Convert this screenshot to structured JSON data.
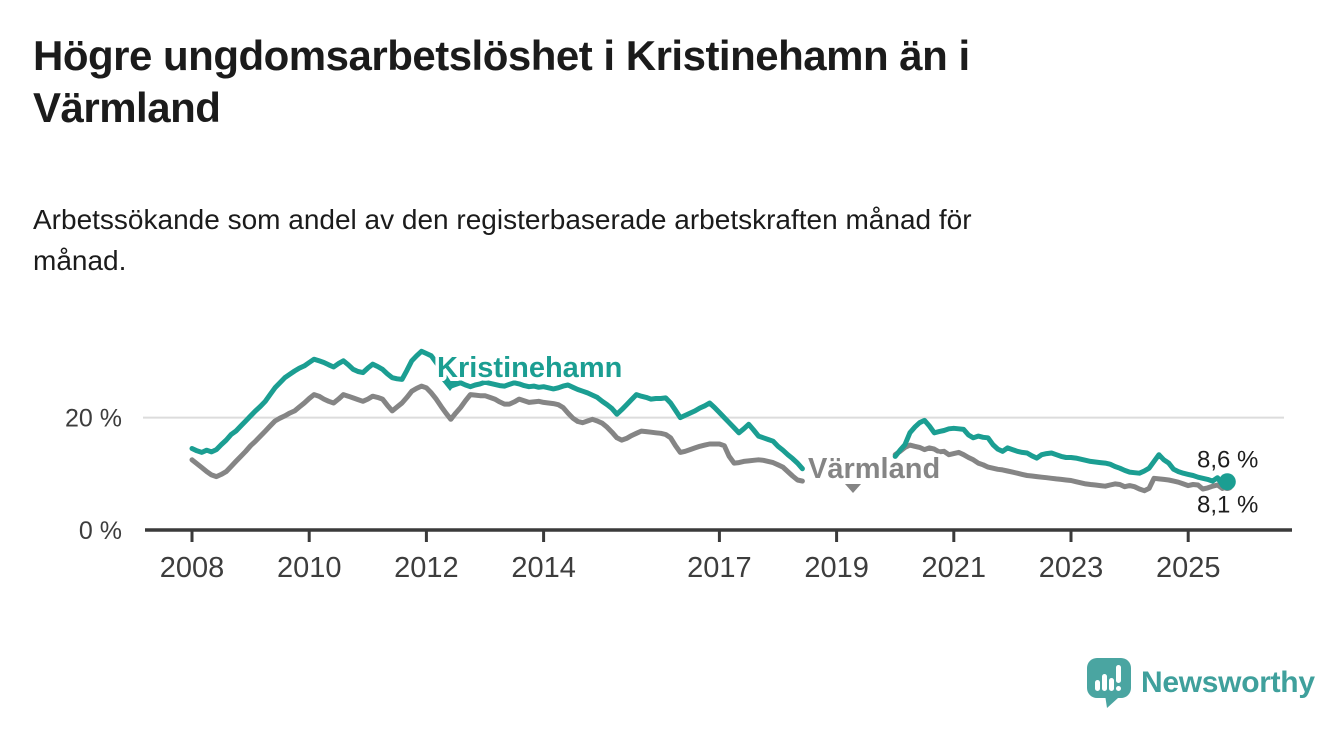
{
  "header": {
    "title": "Högre ungdomsarbetslöshet i Kristinehamn än i Värmland",
    "title_lines": [
      "Högre ungdomsarbetslöshet i Kristinehamn än i",
      "Värmland"
    ],
    "subtitle": "Arbetssökande som andel av den registerbaserade arbetskraften månad för månad.",
    "subtitle_lines": [
      "Arbetssökande som andel av den registerbaserade arbetskraften månad för",
      "månad."
    ]
  },
  "branding": {
    "logo_text": "Newsworthy",
    "logo_color": "#4aa5a1",
    "logo_icon": "bar-chart-speech-bubble-icon"
  },
  "chart_data": {
    "type": "line",
    "title": "Högre ungdomsarbetslöshet i Kristinehamn än i Värmland",
    "subtitle": "Arbetssökande som andel av den registerbaserade arbetskraften månad för månad.",
    "unit": "%",
    "x_start": "2008-01",
    "x_step_months": 1,
    "x_end": "2025-09",
    "data_gap": {
      "from": "2018-07",
      "to": "2019-12"
    },
    "grid": "horizontal-only",
    "legend_position": "inline-labels",
    "x_axis": {
      "ticks": [
        2008,
        2010,
        2012,
        2014,
        2017,
        2019,
        2021,
        2023,
        2025
      ]
    },
    "y_axis": {
      "range": [
        0,
        33.5
      ],
      "gridlines": [
        20
      ],
      "ticks": [
        {
          "value": 20,
          "label": "20 %"
        },
        {
          "value": 0,
          "label": "0 %"
        }
      ]
    },
    "colors": {
      "axis": "#3a3a3a",
      "grid": "#dcdcdc",
      "tick_label": "#3d3d3d",
      "annotation": "#1d1d1d"
    },
    "series": [
      {
        "name": "Kristinehamn",
        "color": "#1b9e92",
        "end_label": "8,6 %",
        "latest_value": 8.6,
        "values": [
          14.5,
          14.1,
          13.8,
          14.2,
          13.9,
          14.3,
          15.2,
          16.0,
          17.0,
          17.6,
          18.5,
          19.4,
          20.3,
          21.2,
          22.0,
          22.9,
          24.1,
          25.3,
          26.2,
          27.1,
          27.7,
          28.3,
          28.8,
          29.2,
          29.8,
          30.4,
          30.1,
          29.8,
          29.4,
          29.0,
          29.6,
          30.1,
          29.4,
          28.6,
          28.2,
          28.0,
          28.8,
          29.5,
          29.1,
          28.6,
          27.8,
          27.1,
          26.9,
          26.8,
          28.4,
          30.1,
          31.0,
          31.8,
          31.4,
          31.0,
          29.8,
          28.6,
          27.0,
          25.6,
          25.9,
          26.2,
          25.8,
          25.5,
          25.8,
          26.0,
          26.3,
          26.1,
          25.9,
          25.7,
          25.6,
          25.9,
          26.2,
          26.0,
          25.7,
          25.5,
          25.6,
          25.4,
          25.5,
          25.3,
          25.1,
          25.3,
          25.6,
          25.8,
          25.4,
          25.0,
          24.7,
          24.4,
          24.0,
          23.6,
          22.9,
          22.3,
          21.6,
          20.6,
          21.4,
          22.3,
          23.2,
          24.1,
          23.8,
          23.6,
          23.3,
          23.4,
          23.4,
          23.5,
          22.6,
          21.3,
          20.0,
          20.4,
          20.8,
          21.2,
          21.7,
          22.1,
          22.6,
          21.8,
          20.9,
          20.0,
          19.1,
          18.2,
          17.3,
          18.0,
          18.8,
          17.8,
          16.7,
          16.4,
          16.1,
          15.8,
          14.9,
          14.2,
          13.4,
          12.7,
          11.9,
          10.9,
          null,
          null,
          null,
          null,
          null,
          null,
          null,
          null,
          null,
          null,
          null,
          null,
          null,
          null,
          null,
          null,
          null,
          null,
          13.1,
          14.2,
          15.2,
          17.3,
          18.3,
          19.1,
          19.5,
          18.5,
          17.3,
          17.5,
          17.7,
          18.0,
          18.1,
          18.0,
          17.9,
          16.9,
          16.4,
          16.7,
          16.5,
          16.4,
          15.2,
          14.4,
          14.0,
          14.6,
          14.3,
          14.0,
          13.8,
          13.7,
          13.2,
          12.8,
          13.4,
          13.6,
          13.7,
          13.4,
          13.1,
          12.9,
          12.9,
          12.8,
          12.6,
          12.4,
          12.2,
          12.1,
          12.0,
          11.9,
          11.7,
          11.3,
          11.0,
          10.6,
          10.3,
          10.2,
          10.1,
          10.5,
          11.0,
          12.2,
          13.4,
          12.5,
          11.9,
          10.8,
          10.4,
          10.1,
          9.9,
          9.7,
          9.4,
          9.2,
          9.0,
          8.7,
          9.3,
          8.0,
          8.6
        ]
      },
      {
        "name": "Värmland",
        "color": "#858585",
        "end_label": "8,1 %",
        "latest_value": 8.1,
        "values": [
          12.5,
          11.8,
          11.1,
          10.4,
          9.8,
          9.5,
          9.9,
          10.4,
          11.3,
          12.2,
          13.1,
          14.0,
          15.0,
          15.8,
          16.7,
          17.6,
          18.5,
          19.4,
          19.9,
          20.3,
          20.8,
          21.2,
          21.9,
          22.6,
          23.4,
          24.1,
          23.8,
          23.3,
          22.9,
          22.6,
          23.3,
          24.1,
          23.8,
          23.5,
          23.2,
          22.9,
          23.3,
          23.8,
          23.6,
          23.3,
          22.2,
          21.2,
          21.9,
          22.6,
          23.6,
          24.7,
          25.2,
          25.6,
          25.3,
          24.4,
          23.3,
          22.0,
          20.8,
          19.7,
          20.8,
          21.8,
          23.0,
          24.1,
          24.0,
          23.9,
          23.9,
          23.6,
          23.3,
          22.8,
          22.4,
          22.4,
          22.8,
          23.3,
          23.0,
          22.7,
          22.8,
          22.9,
          22.7,
          22.6,
          22.5,
          22.3,
          21.8,
          20.8,
          19.9,
          19.3,
          19.1,
          19.4,
          19.7,
          19.4,
          19.0,
          18.3,
          17.4,
          16.4,
          16.0,
          16.3,
          16.8,
          17.2,
          17.6,
          17.5,
          17.4,
          17.3,
          17.2,
          17.0,
          16.4,
          15.0,
          13.8,
          14.0,
          14.3,
          14.6,
          14.9,
          15.1,
          15.3,
          15.3,
          15.3,
          15.0,
          13.1,
          11.9,
          12.0,
          12.2,
          12.3,
          12.4,
          12.5,
          12.4,
          12.2,
          12.0,
          11.6,
          11.2,
          10.4,
          9.6,
          8.9,
          8.7,
          null,
          null,
          null,
          null,
          null,
          null,
          null,
          null,
          null,
          null,
          null,
          null,
          null,
          null,
          null,
          null,
          null,
          null,
          13.4,
          14.0,
          14.7,
          15.1,
          14.9,
          14.7,
          14.3,
          14.6,
          14.4,
          13.9,
          14.0,
          13.4,
          13.6,
          13.8,
          13.4,
          12.9,
          12.5,
          11.9,
          11.6,
          11.2,
          11.0,
          10.8,
          10.7,
          10.5,
          10.3,
          10.1,
          9.9,
          9.7,
          9.6,
          9.5,
          9.4,
          9.3,
          9.2,
          9.1,
          9.0,
          8.9,
          8.8,
          8.6,
          8.4,
          8.2,
          8.1,
          8.0,
          7.9,
          7.8,
          8.0,
          8.2,
          8.1,
          7.7,
          7.9,
          7.7,
          7.3,
          7.0,
          7.4,
          9.2,
          9.1,
          9.0,
          8.9,
          8.7,
          8.5,
          8.2,
          7.9,
          8.1,
          8.0,
          7.3,
          7.5,
          7.8,
          8.0,
          7.4,
          8.1
        ]
      }
    ]
  }
}
